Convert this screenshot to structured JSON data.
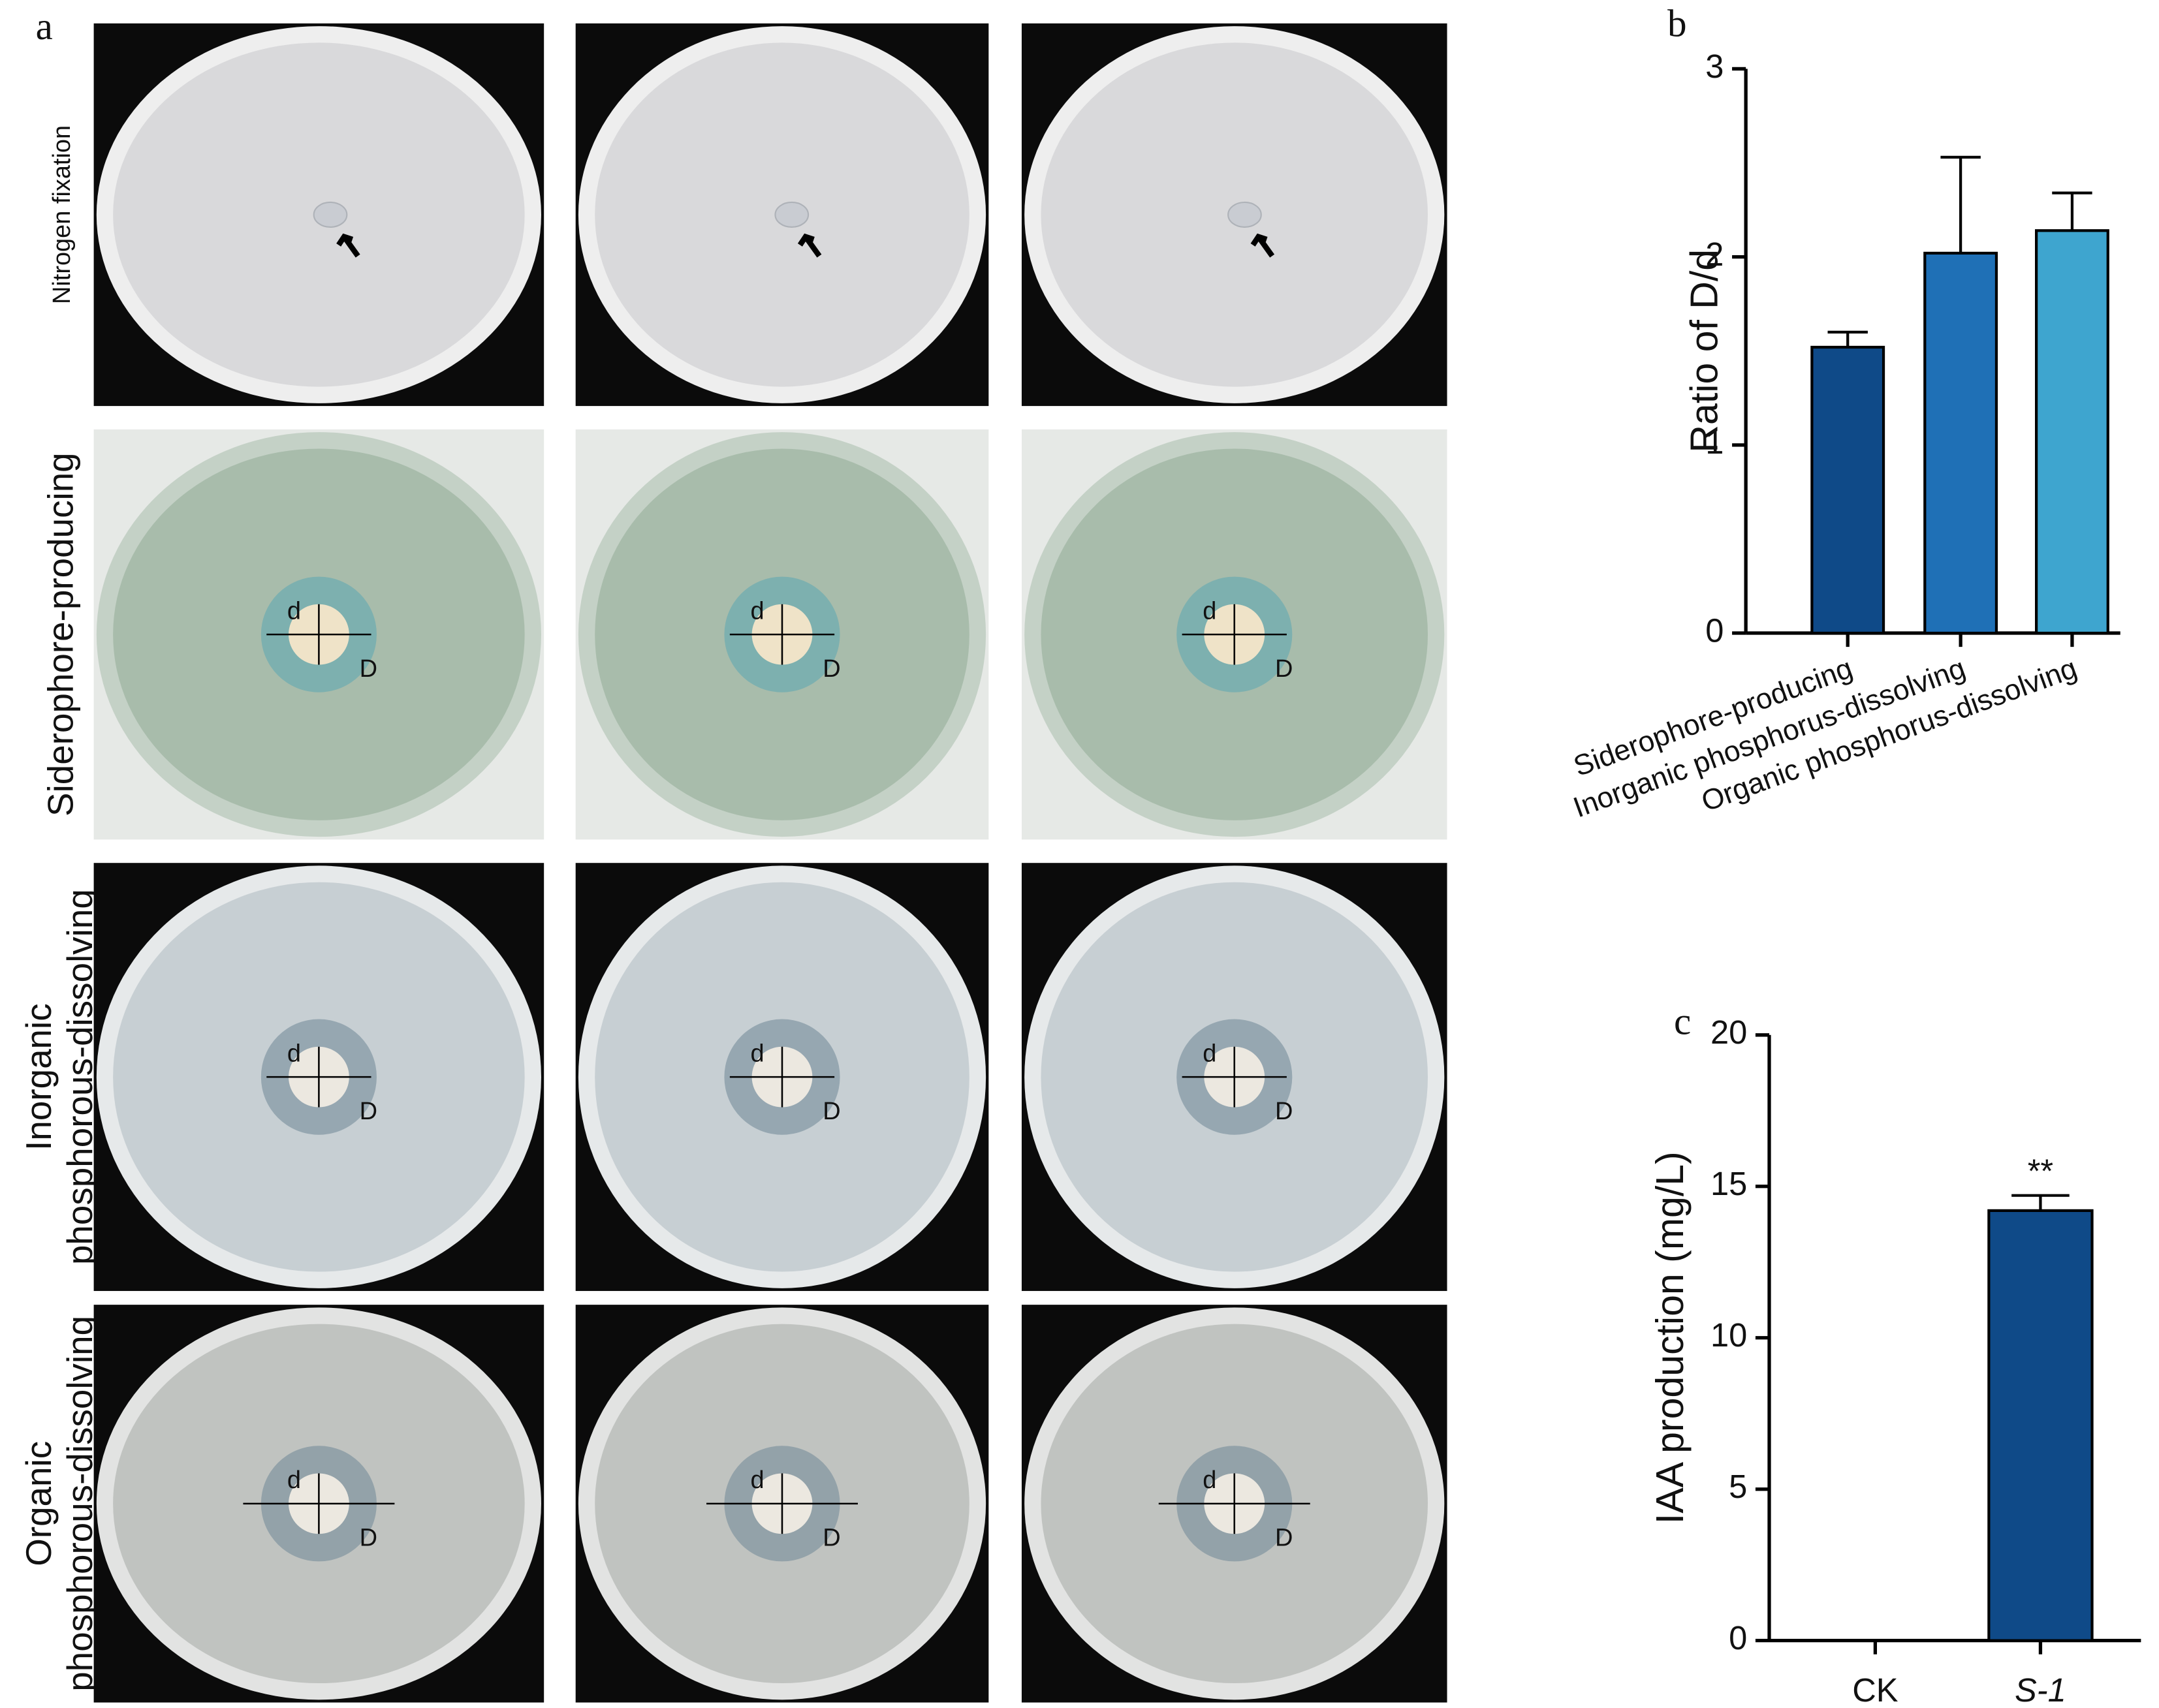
{
  "panel_a": {
    "label": "a",
    "rows": [
      {
        "label": [
          "Nitrogen fixation"
        ]
      },
      {
        "label": [
          "Siderophore-producing"
        ],
        "plates": [
          {
            "inner": "d",
            "outer": "D"
          },
          {
            "inner": "d",
            "outer": "D"
          },
          {
            "inner": "d",
            "outer": "D"
          }
        ]
      },
      {
        "label": [
          "Inorganic",
          "phosphorous-dissolving"
        ],
        "plates": [
          {
            "inner": "d",
            "outer": "D"
          },
          {
            "inner": "d",
            "outer": "D"
          },
          {
            "inner": "d",
            "outer": "D"
          }
        ]
      },
      {
        "label": [
          "Organic",
          "phosphorous-dissolving"
        ],
        "plates": [
          {
            "inner": "d",
            "outer": "D"
          },
          {
            "inner": "d",
            "outer": "D"
          },
          {
            "inner": "d",
            "outer": "D"
          }
        ]
      }
    ]
  },
  "chart_data": [
    {
      "type": "bar",
      "panel_label": "b",
      "y_label": "Ratio of D/d",
      "categories": [
        "Siderophore-producing",
        "Inorganic phosphorus-dissolving",
        "Organic phosphorus-dissolving"
      ],
      "values": [
        1.52,
        2.02,
        2.14
      ],
      "errors": [
        0.08,
        0.51,
        0.2
      ],
      "colors": [
        "#0f4a88",
        "#1f70b6",
        "#3ea5cf"
      ],
      "ylim": [
        0,
        3
      ],
      "yticks": [
        0,
        1,
        2,
        3
      ]
    },
    {
      "type": "bar",
      "panel_label": "c",
      "y_label": "IAA production (mg/L)",
      "categories": [
        "CK",
        "S-1"
      ],
      "values": [
        0,
        14.2
      ],
      "errors": [
        0,
        0.5
      ],
      "colors": [
        "#0f4a88",
        "#0f4a88"
      ],
      "ylim": [
        0,
        20
      ],
      "yticks": [
        0,
        5,
        10,
        15,
        20
      ],
      "annotations": [
        {
          "text": "**",
          "x": "S-1"
        }
      ]
    }
  ]
}
